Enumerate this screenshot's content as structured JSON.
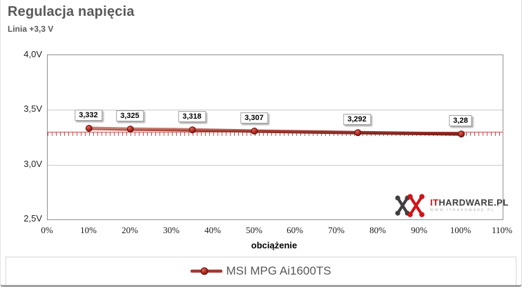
{
  "card": {
    "title": "Regulacja napięcia",
    "subtitle": "Linia +3,3 V"
  },
  "chart_data": {
    "type": "line",
    "title": "Regulacja napięcia",
    "subtitle": "Linia +3,3 V",
    "xlabel": "obciążenie",
    "ylabel": "",
    "xlim": [
      0,
      110
    ],
    "ylim": [
      2.5,
      4.0
    ],
    "x_ticks": [
      "0%",
      "10%",
      "20%",
      "30%",
      "40%",
      "50%",
      "60%",
      "70%",
      "80%",
      "90%",
      "100%",
      "110%"
    ],
    "x_tick_values": [
      0,
      10,
      20,
      30,
      40,
      50,
      60,
      70,
      80,
      90,
      100,
      110
    ],
    "y_ticks": [
      "4,0V",
      "3,5V",
      "3,0V",
      "2,5V"
    ],
    "y_tick_values": [
      4.0,
      3.5,
      3.0,
      2.5
    ],
    "grid": "horizontal-only",
    "gridline_color": "#c9c9c9",
    "reference_line": {
      "value": 3.3,
      "color": "#c0504d",
      "style": "ticked"
    },
    "series": [
      {
        "name": "MSI MPG Ai1600TS",
        "color": "#9e3b32",
        "x": [
          10,
          20,
          35,
          50,
          75,
          100
        ],
        "values": [
          3.332,
          3.325,
          3.318,
          3.307,
          3.292,
          3.28
        ],
        "point_labels": [
          "3,332",
          "3,325",
          "3,318",
          "3,307",
          "3,292",
          "3,28"
        ]
      }
    ],
    "legend_position": "bottom"
  },
  "legend": {
    "items": [
      {
        "label": "MSI MPG Ai1600TS",
        "color": "#9e3b32"
      }
    ]
  },
  "watermark": {
    "brand_red": "IT",
    "brand_dark": "HARDWARE.PL",
    "url_text": "WWW.ITHARDWARE.PL",
    "red": "#cf1418",
    "dark": "#3f3f3f"
  }
}
